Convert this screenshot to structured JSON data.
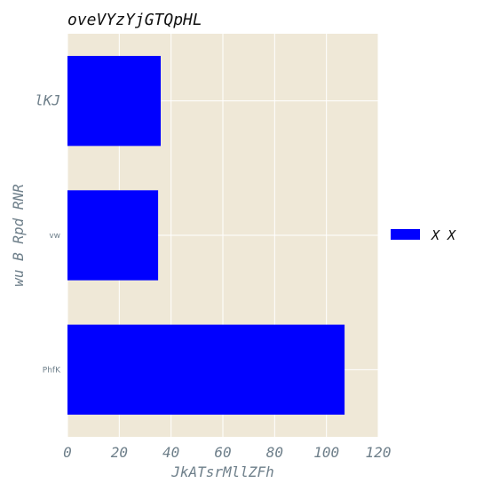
{
  "chart_data": {
    "type": "bar",
    "orientation": "horizontal",
    "title": "oveVYzYjGTQpHL",
    "xlabel": "JkATsrMllZFh",
    "ylabel": "wu B Rpd RNR",
    "categories": [
      "lKJ",
      "vw",
      "PhfK"
    ],
    "series": [
      {
        "name": "X X",
        "values": [
          36,
          35,
          107
        ]
      }
    ],
    "xlim": [
      0,
      120
    ],
    "xticks": [
      0,
      20,
      40,
      60,
      80,
      100,
      120
    ],
    "grid": true,
    "legend_position": "right",
    "colors": {
      "bar": "#0000ff",
      "background": "#efe8d7",
      "grid": "#ffffff"
    }
  }
}
